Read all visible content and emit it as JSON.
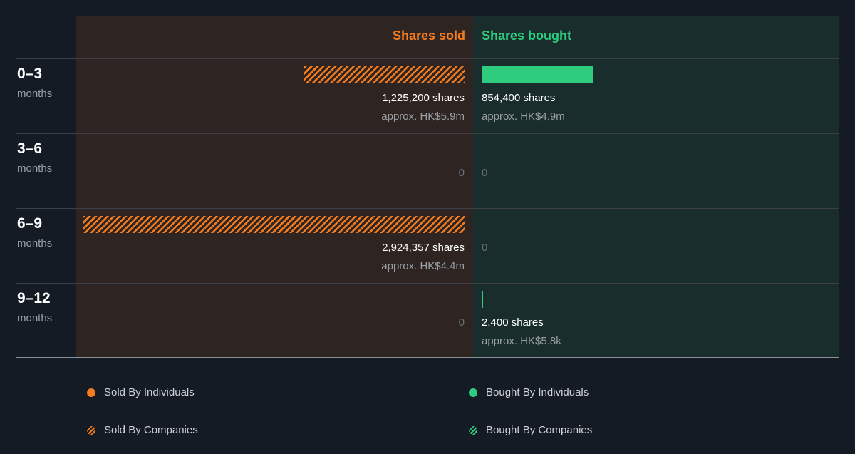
{
  "chart_data": {
    "type": "bar",
    "orientation": "horizontal-diverging",
    "headers": {
      "sold": "Shares sold",
      "bought": "Shares bought"
    },
    "colors": {
      "sold": "#f47c1f",
      "bought": "#2dcc7e"
    },
    "categories": [
      {
        "range": "0–3",
        "unit": "months"
      },
      {
        "range": "3–6",
        "unit": "months"
      },
      {
        "range": "6–9",
        "unit": "months"
      },
      {
        "range": "9–12",
        "unit": "months"
      }
    ],
    "series": [
      {
        "name": "Sold By Companies",
        "side": "sold",
        "values": [
          1225200,
          0,
          2924357,
          0
        ]
      },
      {
        "name": "Bought By Individuals",
        "side": "bought",
        "values": [
          854400,
          0,
          0,
          2400
        ]
      }
    ],
    "labels": {
      "sold": [
        {
          "shares": "1,225,200 shares",
          "approx": "approx. HK$5.9m"
        },
        {
          "shares": "0",
          "approx": ""
        },
        {
          "shares": "2,924,357 shares",
          "approx": "approx. HK$4.4m"
        },
        {
          "shares": "0",
          "approx": ""
        }
      ],
      "bought": [
        {
          "shares": "854,400 shares",
          "approx": "approx. HK$4.9m"
        },
        {
          "shares": "0",
          "approx": ""
        },
        {
          "shares": "0",
          "approx": ""
        },
        {
          "shares": "2,400 shares",
          "approx": "approx. HK$5.8k"
        }
      ]
    },
    "max_value": 2924357,
    "legend": {
      "placement": "bottom",
      "items": [
        {
          "label": "Sold By Individuals",
          "swatch": "dot-orange"
        },
        {
          "label": "Bought By Individuals",
          "swatch": "dot-green"
        },
        {
          "label": "Sold By Companies",
          "swatch": "hatch-orange"
        },
        {
          "label": "Bought By Companies",
          "swatch": "hatch-green"
        }
      ]
    }
  }
}
